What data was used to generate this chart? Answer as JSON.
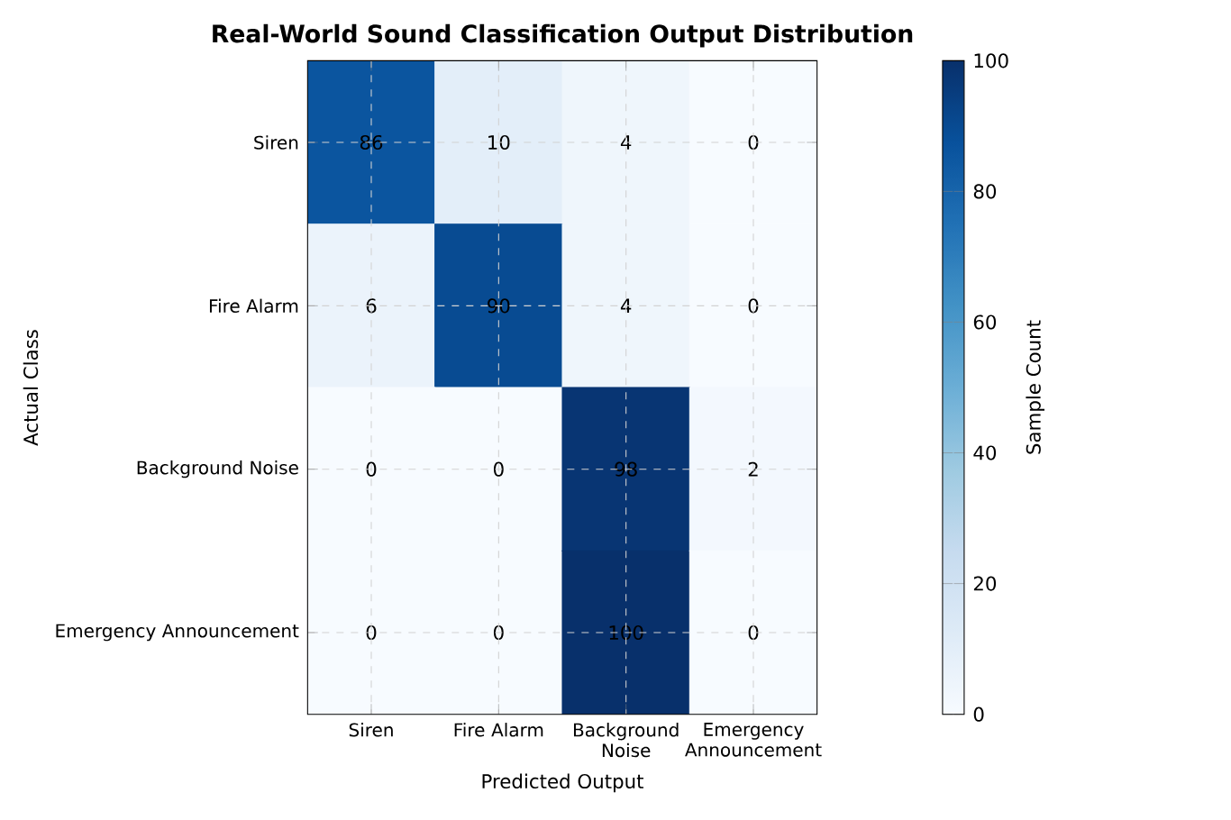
{
  "chart_data": {
    "type": "heatmap",
    "title": "Real-World Sound Classification Output Distribution",
    "xlabel": "Predicted Output",
    "ylabel": "Actual Class",
    "clabel": "Sample Count",
    "categories": [
      "Siren",
      "Fire Alarm",
      "Background Noise",
      "Emergency Announcement"
    ],
    "y_categories": [
      "Siren",
      "Fire Alarm",
      "Background Noise",
      "Emergency Announcement"
    ],
    "cells": [
      [
        86,
        10,
        4,
        0
      ],
      [
        6,
        90,
        4,
        0
      ],
      [
        0,
        0,
        98,
        2
      ],
      [
        0,
        0,
        100,
        0
      ]
    ],
    "clim": [
      0,
      100
    ],
    "cticks": [
      0,
      20,
      40,
      60,
      80,
      100
    ],
    "data_labels": true,
    "grid": true
  }
}
